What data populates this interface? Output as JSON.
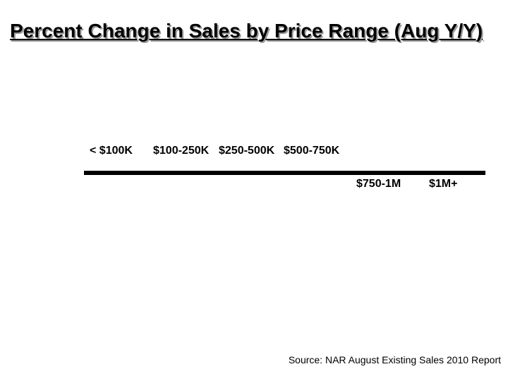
{
  "title": "Percent Change in Sales by Price Range (Aug Y/Y)",
  "footer": {
    "source": "Source: NAR August Existing Sales 2010 Report"
  },
  "colors": {
    "background": "#ffffff",
    "text": "#000000",
    "title_shadow": "#999999",
    "axis_line": "#000000"
  },
  "chart_data": {
    "type": "bar",
    "title": "Percent Change in Sales by Price Range (Aug Y/Y)",
    "categories": [
      "< $100K",
      "$100-250K",
      "$250-500K",
      "$500-750K",
      "$750-1M",
      "$1M+"
    ],
    "category_label_side_of_axis": [
      "above",
      "above",
      "above",
      "above",
      "below",
      "below"
    ],
    "values_visible": false,
    "xlabel": "",
    "ylabel": "",
    "legend": "none",
    "grid": "off",
    "source": "Source: NAR August Existing Sales 2010 Report"
  }
}
